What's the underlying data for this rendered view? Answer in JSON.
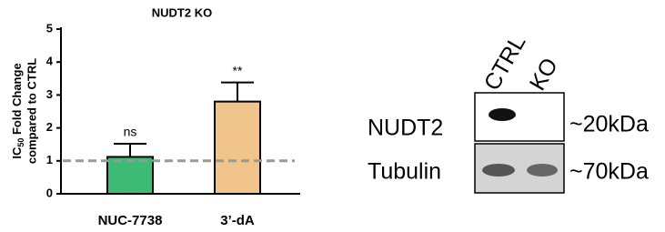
{
  "chart_data": {
    "type": "bar",
    "title": "NUDT2 KO",
    "ylabel": [
      "IC",
      "50",
      " Fold Change",
      "compared to CTRL"
    ],
    "categories": [
      "NUC-7738",
      "3’-dA"
    ],
    "values": [
      1.12,
      2.8
    ],
    "errors": [
      0.4,
      0.58
    ],
    "colors": [
      "#3dbb74",
      "#f0c48a"
    ],
    "annotations": [
      "ns",
      "**"
    ],
    "reference_line": 1,
    "ylim": [
      0,
      5
    ],
    "yticks": [
      0,
      1,
      2,
      3,
      4,
      5
    ]
  },
  "blot": {
    "lanes": [
      "CTRL",
      "KO"
    ],
    "rows": [
      {
        "label": "NUDT2",
        "size": "~20kDa"
      },
      {
        "label": "Tubulin",
        "size": "~70kDa"
      }
    ]
  }
}
